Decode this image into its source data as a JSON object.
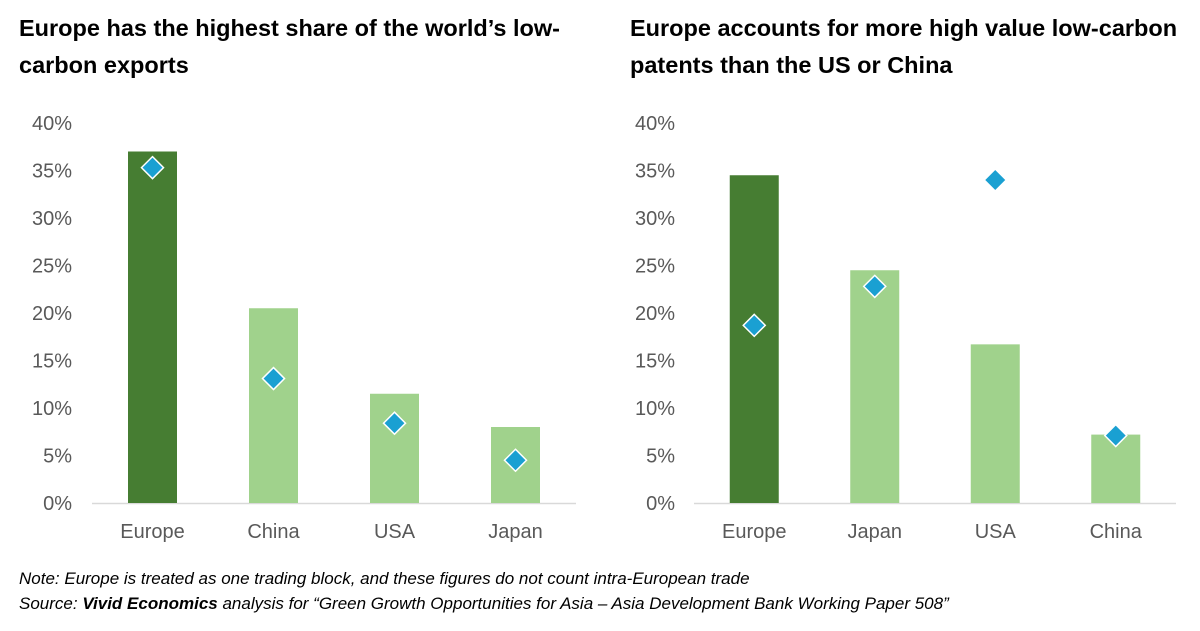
{
  "chart_data": [
    {
      "type": "bar",
      "title": "Europe has the highest share of the world’s low-carbon exports",
      "categories": [
        "Europe",
        "China",
        "USA",
        "Japan"
      ],
      "series": [
        {
          "kind": "bar",
          "values": [
            37.0,
            20.5,
            11.5,
            8.0
          ]
        },
        {
          "kind": "marker",
          "values": [
            35.3,
            13.1,
            8.4,
            4.5
          ]
        }
      ],
      "y_tick_labels": [
        "0%",
        "5%",
        "10%",
        "15%",
        "20%",
        "25%",
        "30%",
        "35%",
        "40%"
      ],
      "ylim": [
        0,
        40
      ],
      "grid": false,
      "highlight_category": "Europe"
    },
    {
      "type": "bar",
      "title": "Europe accounts for more high value low-carbon patents than the US or China",
      "categories": [
        "Europe",
        "Japan",
        "USA",
        "China"
      ],
      "series": [
        {
          "kind": "bar",
          "values": [
            34.5,
            24.5,
            16.7,
            7.2
          ]
        },
        {
          "kind": "marker",
          "values": [
            18.7,
            22.8,
            34.0,
            7.1
          ]
        }
      ],
      "y_tick_labels": [
        "0%",
        "5%",
        "10%",
        "15%",
        "20%",
        "25%",
        "30%",
        "35%",
        "40%"
      ],
      "ylim": [
        0,
        40
      ],
      "grid": false,
      "highlight_category": "Europe"
    }
  ],
  "colors": {
    "highlight_bar": "#467d32",
    "bar": "#a0d28c",
    "marker": "#1aa0d2",
    "marker_edge": "#ffffff",
    "axis": "#d9d9d9",
    "tick_text": "#595959"
  },
  "notes": {
    "note": "Note: Europe is treated as one trading block, and these figures do not count intra-European trade",
    "source_prefix": "Source: ",
    "source_org": "Vivid Economics",
    "source_rest": " analysis for “Green Growth Opportunities for Asia – Asia Development Bank Working Paper 508”"
  }
}
